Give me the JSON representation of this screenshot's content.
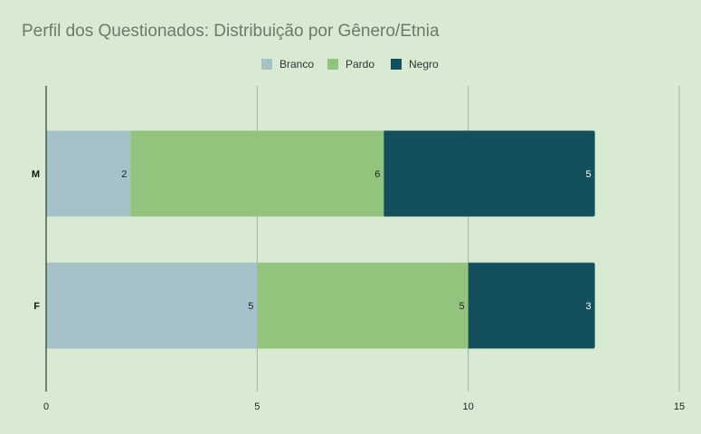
{
  "chart_data": {
    "type": "bar",
    "orientation": "horizontal",
    "stacked": true,
    "title": "Perfil dos Questionados: Distribuição por Gênero/Etnia",
    "categories": [
      "M",
      "F"
    ],
    "series": [
      {
        "name": "Branco",
        "values": [
          2,
          5
        ],
        "color": "#a4c2c7",
        "label_color": "#222222"
      },
      {
        "name": "Pardo",
        "values": [
          6,
          5
        ],
        "color": "#93c47d",
        "label_color": "#222222"
      },
      {
        "name": "Negro",
        "values": [
          5,
          3
        ],
        "color": "#134f5c",
        "label_color": "#ffffff"
      }
    ],
    "xlim": [
      0,
      15
    ],
    "xticks": [
      "0",
      "5",
      "10",
      "15"
    ],
    "xlabel": "",
    "ylabel": "",
    "grid": true,
    "legend": "top-center",
    "background": "#d9ead3",
    "gridline_color": "#a6b3a0"
  }
}
